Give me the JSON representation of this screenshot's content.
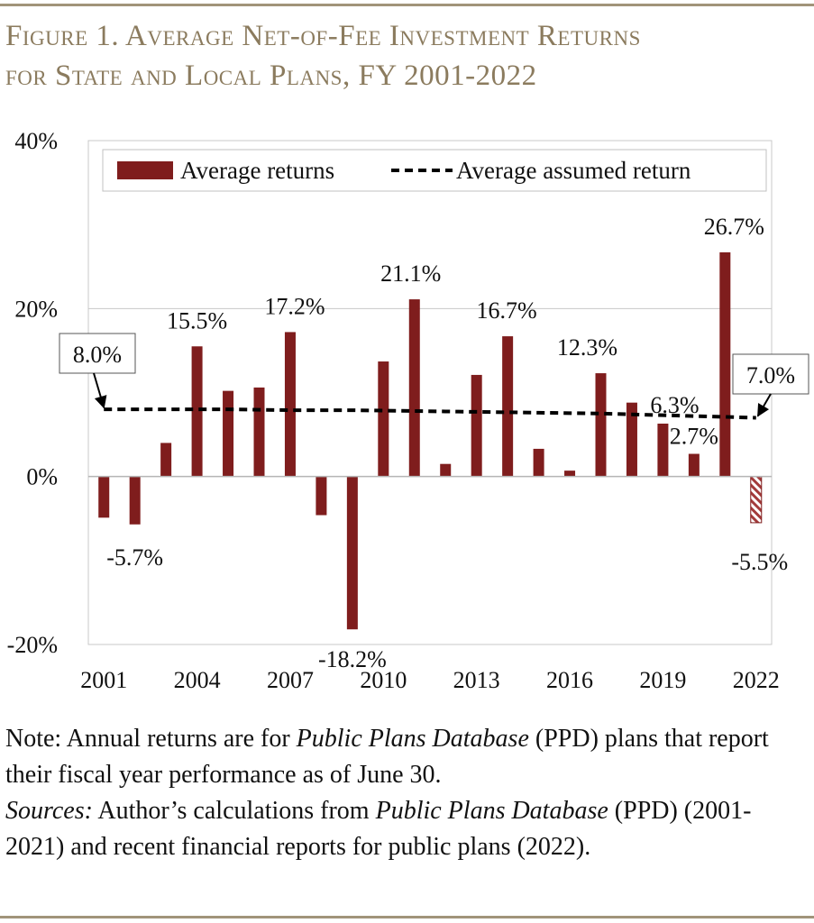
{
  "colors": {
    "rule": "#a1947a",
    "title": "#8b7b5e",
    "bar": "#7f1d1d",
    "bar_estimate_stripe": "#a33b3b",
    "assumed_line": "#000000",
    "grid": "#c8c8c8"
  },
  "figure": {
    "title_line1": "Figure 1. Average Net-of-Fee Investment Returns",
    "title_line2": "for State and Local Plans, FY 2001-2022"
  },
  "note": {
    "note_prefix": "Note: Annual returns are for ",
    "note_italic": "Public Plans Database",
    "note_rest": " (PPD) plans that report their fiscal year performance as of June 30.",
    "sources_label": "Sources:",
    "sources_text1": " Author’s calculations from ",
    "sources_italic": "Public Plans Database",
    "sources_text2": " (PPD) (2001-2021) and recent financial reports for public plans (2022)."
  },
  "chart_data": {
    "type": "bar",
    "title": "",
    "xlabel": "",
    "ylabel": "",
    "ylim": [
      -20,
      40
    ],
    "y_ticks": [
      -20,
      0,
      20,
      40
    ],
    "y_tick_labels": [
      "-20%",
      "0%",
      "20%",
      "40%"
    ],
    "x_tick_labels": [
      "2001",
      "2004",
      "2007",
      "2010",
      "2013",
      "2016",
      "2019",
      "2022"
    ],
    "categories": [
      "2001",
      "2002",
      "2003",
      "2004",
      "2005",
      "2006",
      "2007",
      "2008",
      "2009",
      "2010",
      "2011",
      "2012",
      "2013",
      "2014",
      "2015",
      "2016",
      "2017",
      "2018",
      "2019",
      "2020",
      "2021",
      "2022"
    ],
    "grid": true,
    "legend_position": "top",
    "series": [
      {
        "name": "Average returns",
        "type": "bar",
        "values": [
          -4.9,
          -5.7,
          4.0,
          15.5,
          10.2,
          10.6,
          17.2,
          -4.6,
          -18.2,
          13.7,
          21.1,
          1.5,
          12.1,
          16.7,
          3.3,
          0.7,
          12.3,
          8.8,
          6.3,
          2.7,
          26.7,
          -5.5
        ],
        "estimate_categories": [
          "2022"
        ]
      },
      {
        "name": "Average assumed return",
        "type": "line",
        "style": "dashed",
        "values": [
          8.0,
          8.0,
          8.0,
          8.0,
          8.0,
          7.95,
          7.9,
          7.9,
          7.9,
          7.85,
          7.8,
          7.75,
          7.7,
          7.65,
          7.6,
          7.55,
          7.5,
          7.4,
          7.3,
          7.2,
          7.1,
          7.0
        ]
      }
    ],
    "data_labels": [
      {
        "category": "2002",
        "text": "-5.7%"
      },
      {
        "category": "2004",
        "text": "15.5%"
      },
      {
        "category": "2007",
        "text": "17.2%"
      },
      {
        "category": "2009",
        "text": "-18.2%"
      },
      {
        "category": "2011",
        "text": "21.1%"
      },
      {
        "category": "2014",
        "text": "16.7%"
      },
      {
        "category": "2017",
        "text": "12.3%"
      },
      {
        "category": "2019",
        "text": "6.3%"
      },
      {
        "category": "2020",
        "text": "2.7%"
      },
      {
        "category": "2021",
        "text": "26.7%"
      },
      {
        "category": "2022",
        "text": "-5.5%"
      }
    ],
    "callouts": [
      {
        "category": "2001",
        "text": "8.0%"
      },
      {
        "category": "2022",
        "text": "7.0%"
      }
    ]
  }
}
